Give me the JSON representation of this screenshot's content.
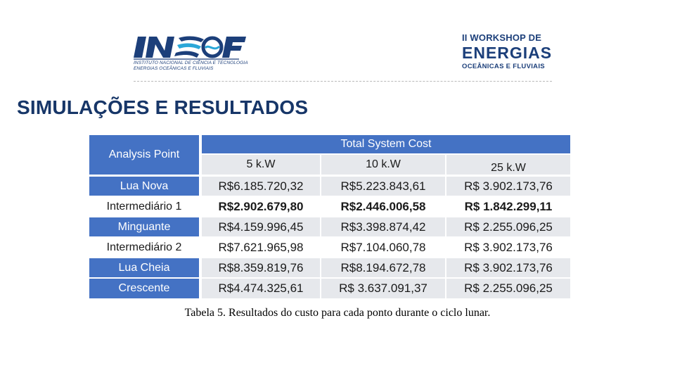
{
  "header": {
    "left_logo": {
      "wordmark": "INEOF",
      "subtitle_line1": "INSTITUTO NACIONAL DE CIÊNCIA E TECNOLOGIA",
      "subtitle_line2": "ENERGIAS OCEÂNICAS E FLUVIAIS",
      "color": "#1c3f7a",
      "accent": "#2aa7d8"
    },
    "right_logo": {
      "line1": "II WORKSHOP DE",
      "line2": "ENERGIAS",
      "line3": "OCEÂNICAS E FLUVIAIS"
    }
  },
  "slide": {
    "title": "SIMULAÇÕES E RESULTADOS"
  },
  "table": {
    "analysis_header": "Analysis Point",
    "group_header": "Total System Cost",
    "columns": [
      "5 k.W",
      "10 k.W",
      "25 k.W"
    ],
    "rows": [
      {
        "label": "Lua Nova",
        "values": [
          "R$6.185.720,32",
          "R$5.223.843,61",
          "R$ 3.902.173,76"
        ]
      },
      {
        "label": "Intermediário 1",
        "values": [
          "R$2.902.679,80",
          "R$2.446.006,58",
          "R$ 1.842.299,11"
        ]
      },
      {
        "label": "Minguante",
        "values": [
          "R$4.159.996,45",
          "R$3.398.874,42",
          "R$ 2.255.096,25"
        ]
      },
      {
        "label": "Intermediário 2",
        "values": [
          "R$7.621.965,98",
          "R$7.104.060,78",
          "R$ 3.902.173,76"
        ]
      },
      {
        "label": "Lua Cheia",
        "values": [
          "R$8.359.819,76",
          "R$8.194.672,78",
          "R$ 3.902.173,76"
        ]
      },
      {
        "label": "Crescente",
        "values": [
          "R$4.474.325,61",
          "R$ 3.637.091,37",
          "R$ 2.255.096,25"
        ]
      }
    ],
    "bold_row_index": 1,
    "header_color": "#4472c4",
    "band_color": "#e6e8ec"
  },
  "caption": "Tabela 5. Resultados do custo para cada ponto durante o ciclo lunar."
}
